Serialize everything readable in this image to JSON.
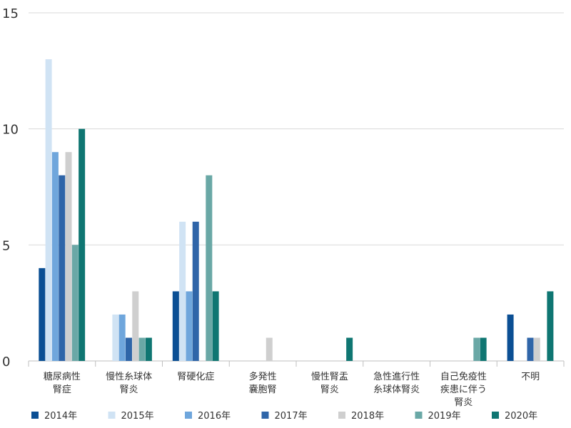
{
  "chart_data": {
    "type": "bar",
    "title": "",
    "xlabel": "",
    "ylabel": "",
    "ylim": [
      0,
      15
    ],
    "yticks": [
      0,
      5,
      10,
      15
    ],
    "grid": true,
    "legend_position": "bottom",
    "categories": [
      [
        "糖尿病性",
        "腎症"
      ],
      [
        "慢性糸球体",
        "腎炎"
      ],
      [
        "腎硬化症"
      ],
      [
        "多発性",
        "嚢胞腎"
      ],
      [
        "慢性腎盂",
        "腎炎"
      ],
      [
        "急性進行性",
        "糸球体腎炎"
      ],
      [
        "自己免疫性",
        "疾患に伴う",
        "腎炎"
      ],
      [
        "不明"
      ]
    ],
    "series": [
      {
        "name": "2014年",
        "color": "#0b4f94",
        "values": [
          4,
          0,
          3,
          0,
          0,
          0,
          0,
          2
        ]
      },
      {
        "name": "2015年",
        "color": "#d0e3f4",
        "values": [
          13,
          2,
          6,
          0,
          0,
          0,
          0,
          0
        ]
      },
      {
        "name": "2016年",
        "color": "#6fa6dc",
        "values": [
          9,
          2,
          3,
          0,
          0,
          0,
          0,
          0
        ]
      },
      {
        "name": "2017年",
        "color": "#2f65a8",
        "values": [
          8,
          1,
          6,
          0,
          0,
          0,
          0,
          1
        ]
      },
      {
        "name": "2018年",
        "color": "#cfcfcf",
        "values": [
          9,
          3,
          0,
          1,
          0,
          0,
          0,
          1
        ]
      },
      {
        "name": "2019年",
        "color": "#6aa8a6",
        "values": [
          5,
          1,
          8,
          0,
          0,
          0,
          1,
          0
        ]
      },
      {
        "name": "2020年",
        "color": "#0f7672",
        "values": [
          10,
          1,
          3,
          0,
          1,
          0,
          1,
          3
        ]
      }
    ]
  }
}
